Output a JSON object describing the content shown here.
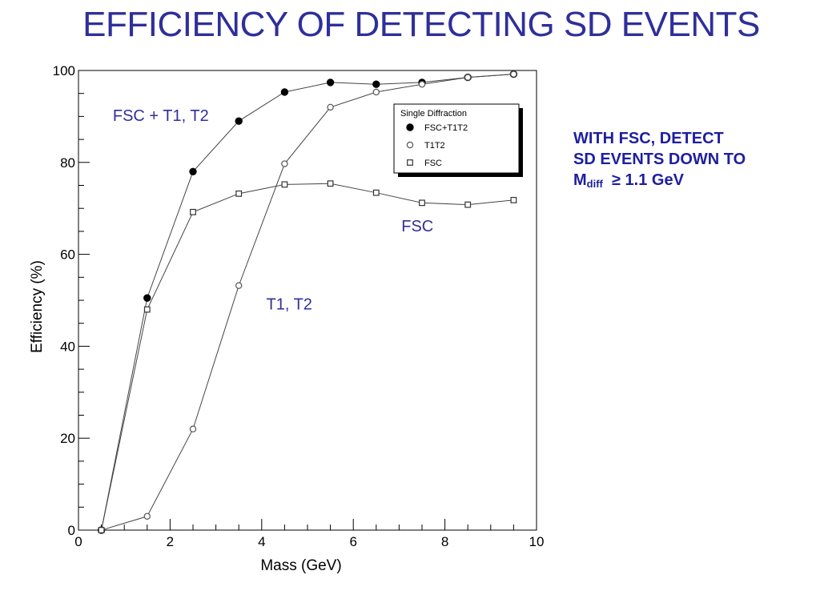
{
  "slide": {
    "title": "EFFICIENCY OF DETECTING SD EVENTS",
    "note_line1": "WITH FSC, DETECT",
    "note_line2": "SD EVENTS DOWN TO",
    "note_m": "M",
    "note_sub": "diff",
    "note_tail": "≥ 1.1 GeV"
  },
  "chart_data": {
    "type": "line",
    "title": "",
    "xlabel": "Mass (GeV)",
    "ylabel": "Efficiency (%)",
    "xlim": [
      0,
      10
    ],
    "ylim": [
      0,
      100
    ],
    "xticks": [
      0,
      2,
      4,
      6,
      8,
      10
    ],
    "yticks": [
      0,
      20,
      40,
      60,
      80,
      100
    ],
    "grid": false,
    "legend": {
      "title": "Single Diffraction",
      "placement": "top-right",
      "entries": [
        "FSC+T1T2",
        "T1T2",
        "FSC"
      ]
    },
    "series": [
      {
        "name": "FSC+T1T2",
        "marker": "filled-circle",
        "x": [
          0.5,
          1.5,
          2.5,
          3.5,
          4.5,
          5.5,
          6.5,
          7.5,
          8.5,
          9.5
        ],
        "y": [
          0,
          50.5,
          78,
          89,
          95.3,
          97.4,
          97,
          97.4,
          98.5,
          99.2
        ]
      },
      {
        "name": "T1T2",
        "marker": "open-circle",
        "x": [
          0.5,
          1.5,
          2.5,
          3.5,
          4.5,
          5.5,
          6.5,
          7.5,
          8.5,
          9.5
        ],
        "y": [
          0,
          3,
          22,
          53.2,
          79.7,
          92,
          95.3,
          97,
          98.5,
          99.2
        ]
      },
      {
        "name": "FSC",
        "marker": "open-square",
        "x": [
          0.5,
          1.5,
          2.5,
          3.5,
          4.5,
          5.5,
          6.5,
          7.5,
          8.5,
          9.5
        ],
        "y": [
          0,
          48,
          69.2,
          73.2,
          75.2,
          75.4,
          73.4,
          71.2,
          70.8,
          71.8
        ]
      }
    ],
    "annotations": [
      {
        "text": "FSC + T1, T2",
        "x": 0.4,
        "y": 89
      },
      {
        "text": "T1, T2",
        "x": 3.75,
        "y": 48
      },
      {
        "text": "FSC",
        "x": 6.7,
        "y": 65
      }
    ]
  }
}
